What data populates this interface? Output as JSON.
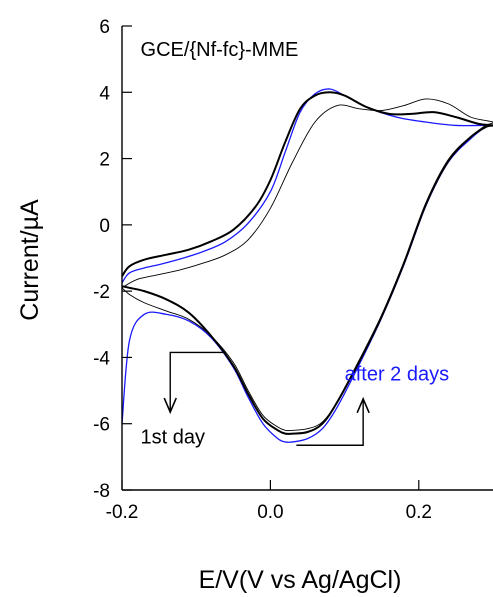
{
  "chart_data": {
    "type": "line",
    "title": "",
    "xlabel": "E/V(V vs Ag/AgCl)",
    "ylabel": "Current/µA",
    "xlim": [
      -0.2,
      0.3
    ],
    "ylim": [
      -8,
      6
    ],
    "xticks": [
      -0.2,
      0.0,
      0.2
    ],
    "xtick_labels": [
      "-0.2",
      "0.0",
      "0.2"
    ],
    "yticks": [
      -8,
      -6,
      -4,
      -2,
      0,
      2,
      4,
      6
    ],
    "ytick_labels": [
      "-8",
      "-6",
      "-4",
      "-2",
      "0",
      "2",
      "4",
      "6"
    ],
    "grid": false,
    "legend": "none",
    "annotations": [
      {
        "text": "GCE/{Nf-fc}-MME",
        "x": -0.175,
        "y": 5.1,
        "color": "#000000"
      },
      {
        "text": "after 2 days",
        "x": 0.1,
        "y": -4.7,
        "color": "#1a1aff"
      },
      {
        "text": "1st day",
        "x": -0.175,
        "y": -6.6,
        "color": "#000000"
      }
    ],
    "arrows": [
      {
        "name": "arrow-down",
        "direction": "down",
        "path": [
          [
            -0.06,
            -3.85
          ],
          [
            -0.135,
            -3.85
          ],
          [
            -0.135,
            -5.65
          ]
        ]
      },
      {
        "name": "arrow-up",
        "direction": "up",
        "path": [
          [
            0.035,
            -6.65
          ],
          [
            0.125,
            -6.65
          ],
          [
            0.125,
            -5.25
          ]
        ]
      }
    ],
    "series": [
      {
        "color": "#1a1aff",
        "stroke_width": 1.3,
        "x": [
          -0.2,
          -0.19,
          -0.17,
          -0.15,
          -0.12,
          -0.09,
          -0.06,
          -0.03,
          0.0,
          0.02,
          0.04,
          0.06,
          0.08,
          0.1,
          0.13,
          0.17,
          0.21,
          0.25,
          0.28,
          0.3,
          0.29,
          0.27,
          0.24,
          0.21,
          0.18,
          0.15,
          0.12,
          0.09,
          0.07,
          0.05,
          0.03,
          0.02,
          0.01,
          -0.01,
          -0.03,
          -0.05,
          -0.08,
          -0.11,
          -0.14,
          -0.17,
          -0.19,
          -0.2
        ],
        "y": [
          -1.75,
          -1.45,
          -1.3,
          -1.2,
          -1.02,
          -0.8,
          -0.5,
          0.05,
          1.0,
          2.2,
          3.4,
          3.95,
          4.1,
          3.9,
          3.55,
          3.25,
          3.1,
          3.0,
          3.0,
          3.0,
          2.95,
          2.6,
          1.9,
          0.6,
          -1.2,
          -2.8,
          -4.2,
          -5.5,
          -6.15,
          -6.45,
          -6.55,
          -6.55,
          -6.45,
          -6.0,
          -5.2,
          -4.3,
          -3.4,
          -2.9,
          -2.7,
          -2.7,
          -3.5,
          -6.0
        ]
      },
      {
        "color": "#000000",
        "stroke_width": 0.9,
        "x": [
          -0.2,
          -0.18,
          -0.15,
          -0.12,
          -0.09,
          -0.06,
          -0.03,
          0.0,
          0.03,
          0.06,
          0.09,
          0.12,
          0.15,
          0.18,
          0.21,
          0.24,
          0.27,
          0.3,
          0.29,
          0.27,
          0.24,
          0.21,
          0.18,
          0.15,
          0.12,
          0.09,
          0.07,
          0.05,
          0.03,
          0.02,
          0.01,
          -0.01,
          -0.03,
          -0.05,
          -0.08,
          -0.11,
          -0.14,
          -0.17,
          -0.19,
          -0.2
        ],
        "y": [
          -1.9,
          -1.65,
          -1.5,
          -1.35,
          -1.15,
          -0.9,
          -0.45,
          0.5,
          1.9,
          3.1,
          3.6,
          3.5,
          3.45,
          3.6,
          3.8,
          3.65,
          3.25,
          3.1,
          3.0,
          2.65,
          1.9,
          0.6,
          -1.2,
          -2.8,
          -4.15,
          -5.35,
          -5.95,
          -6.15,
          -6.2,
          -6.2,
          -6.1,
          -5.75,
          -5.0,
          -4.15,
          -3.35,
          -2.85,
          -2.6,
          -2.35,
          -2.1,
          -1.9
        ]
      },
      {
        "color": "#000000",
        "stroke_width": 2.0,
        "x": [
          -0.2,
          -0.19,
          -0.17,
          -0.14,
          -0.11,
          -0.08,
          -0.05,
          -0.02,
          0.0,
          0.02,
          0.04,
          0.06,
          0.08,
          0.1,
          0.13,
          0.16,
          0.19,
          0.22,
          0.25,
          0.28,
          0.3,
          0.29,
          0.27,
          0.24,
          0.21,
          0.18,
          0.15,
          0.12,
          0.09,
          0.07,
          0.05,
          0.03,
          0.02,
          0.01,
          -0.01,
          -0.03,
          -0.05,
          -0.08,
          -0.11,
          -0.14,
          -0.17,
          -0.19,
          -0.2
        ],
        "y": [
          -1.55,
          -1.25,
          -1.05,
          -0.9,
          -0.75,
          -0.5,
          -0.15,
          0.55,
          1.35,
          2.5,
          3.5,
          3.9,
          4.0,
          3.9,
          3.55,
          3.35,
          3.35,
          3.4,
          3.25,
          3.05,
          3.0,
          2.95,
          2.65,
          1.95,
          0.65,
          -1.15,
          -2.75,
          -4.1,
          -5.35,
          -6.0,
          -6.25,
          -6.3,
          -6.3,
          -6.2,
          -5.85,
          -5.1,
          -4.25,
          -3.35,
          -2.65,
          -2.25,
          -2.0,
          -1.9,
          -1.85
        ]
      }
    ]
  }
}
